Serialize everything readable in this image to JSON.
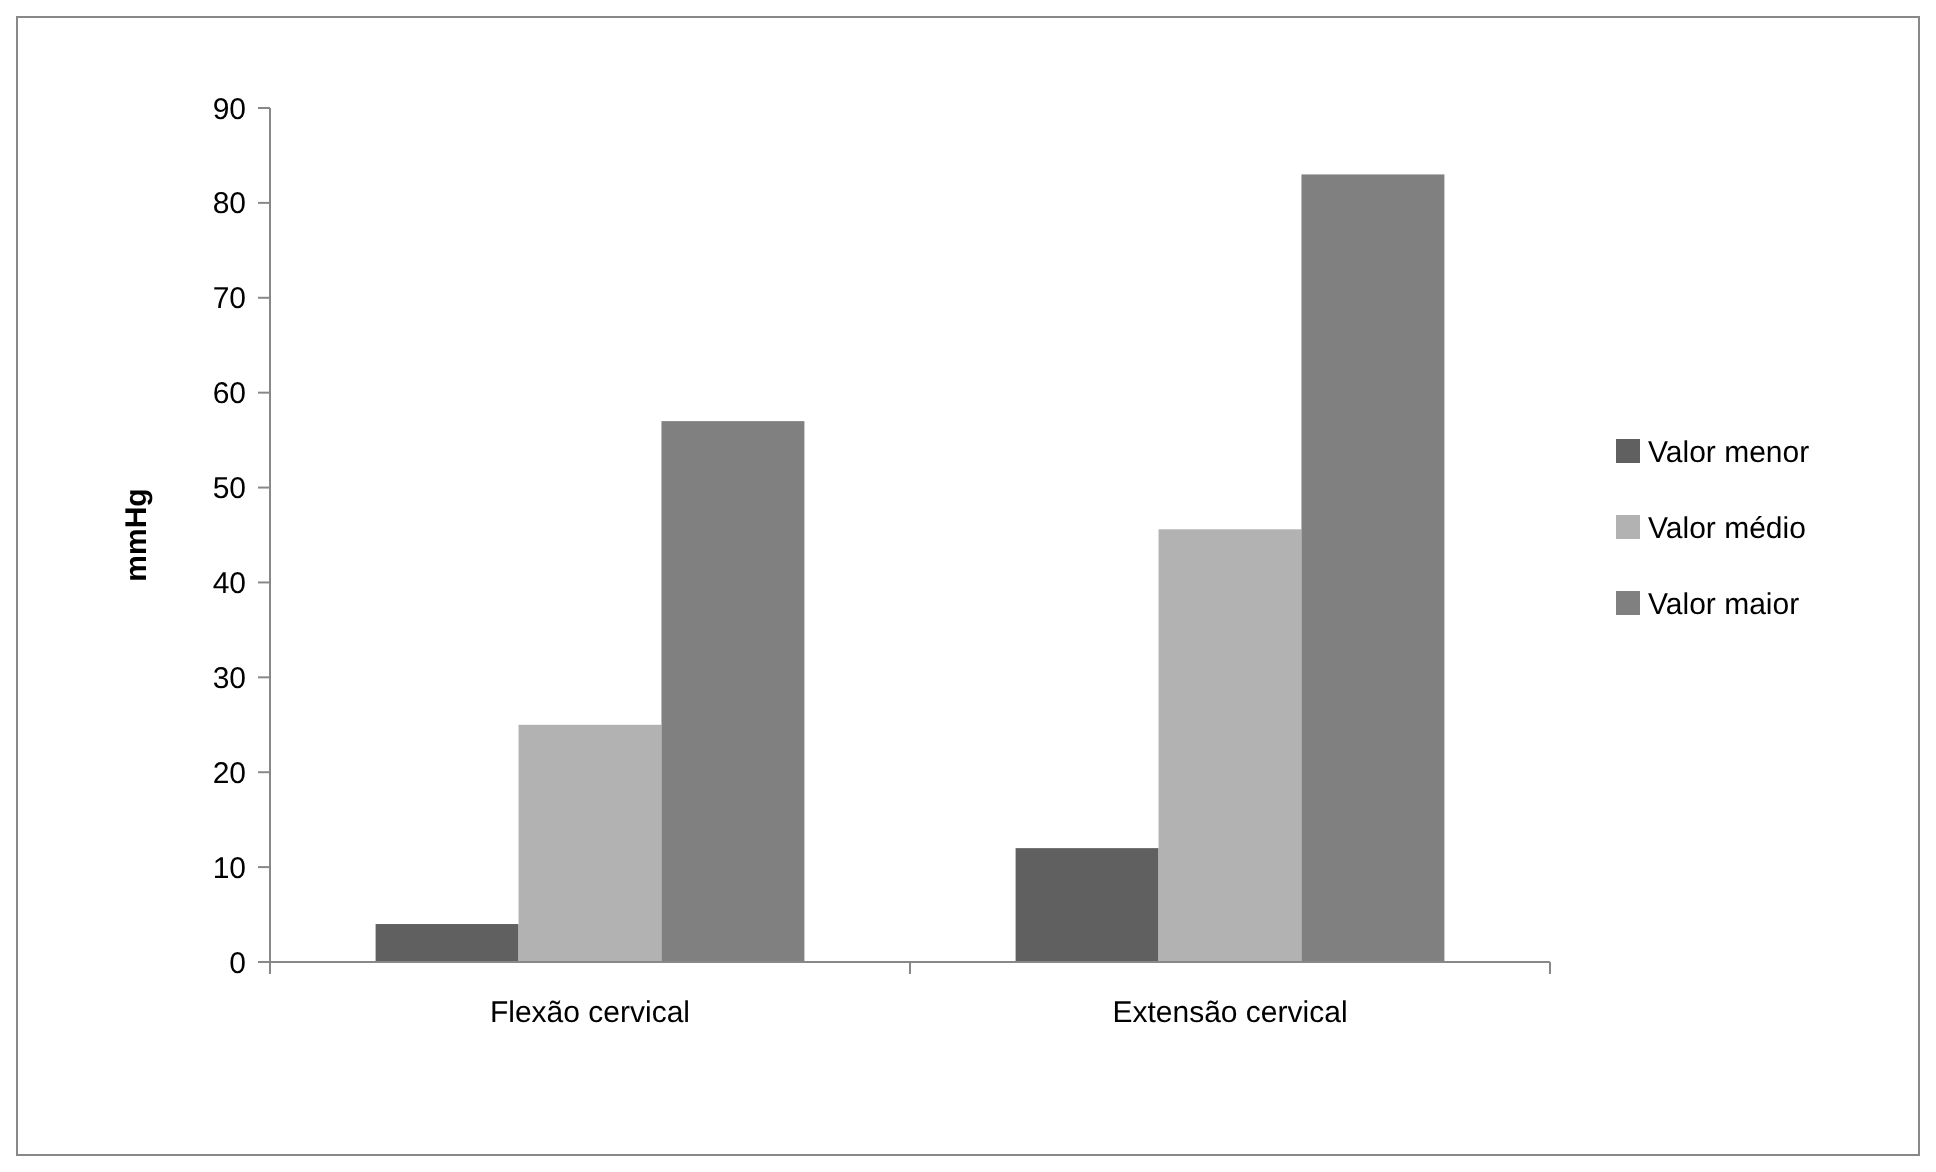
{
  "chart_data": {
    "type": "bar",
    "ylabel": "mmHg",
    "categories": [
      "Flexão cervical",
      "Extensão cervical"
    ],
    "series": [
      {
        "name": "Valor menor",
        "color": "#606060",
        "values": [
          4,
          12
        ]
      },
      {
        "name": "Valor médio",
        "color": "#b2b2b2",
        "values": [
          25,
          45.6
        ]
      },
      {
        "name": "Valor maior",
        "color": "#808080",
        "values": [
          57,
          83
        ]
      }
    ],
    "ylim": [
      0,
      90
    ],
    "yticks": [
      0,
      10,
      20,
      30,
      40,
      50,
      60,
      70,
      80,
      90
    ],
    "grid": false,
    "legend": "right"
  }
}
